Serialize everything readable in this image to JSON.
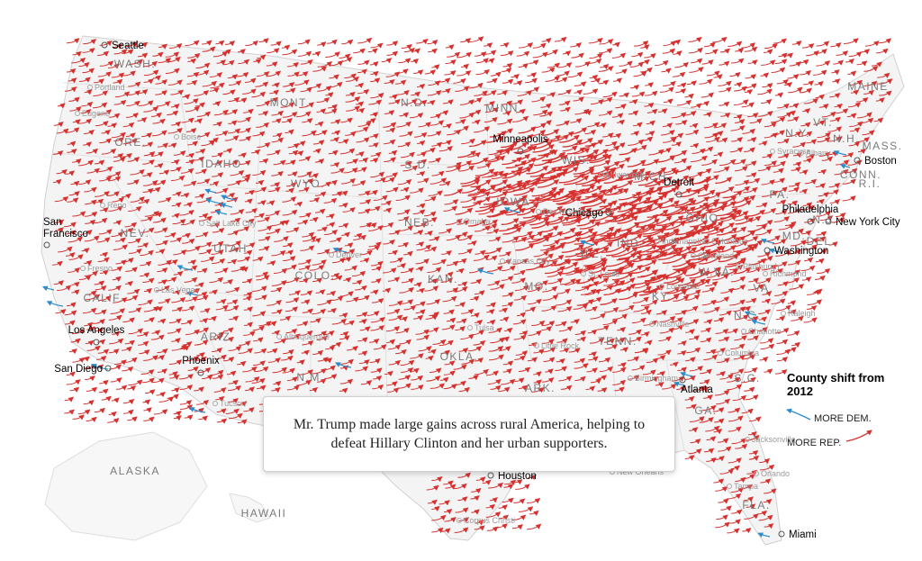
{
  "callout": {
    "text": "Mr. Trump made large gains across rural America, helping to defeat Hillary Clinton and her urban supporters."
  },
  "legend": {
    "title": "County shift from 2012",
    "dem_label": "MORE DEM.",
    "rep_label": "MORE REP.",
    "dem_color": "#2b8ccb",
    "rep_color": "#d6312f"
  },
  "state_labels": [
    "WASH.",
    "ORE.",
    "IDAHO",
    "MONT.",
    "WYO.",
    "N.D.",
    "S.D.",
    "NEB.",
    "MINN.",
    "IOWA",
    "WIS.",
    "MICH.",
    "ILL.",
    "IND.",
    "OHIO",
    "PA.",
    "N.Y.",
    "VT.",
    "N.H.",
    "MAINE",
    "MASS.",
    "CONN.",
    "R.I.",
    "N.J.",
    "DEL.",
    "MD.",
    "W.VA.",
    "VA.",
    "KY.",
    "TENN.",
    "N.C.",
    "S.C.",
    "GA.",
    "FLA.",
    "ALA.",
    "MISS.",
    "ARK.",
    "LA.",
    "MO.",
    "KAN.",
    "OKLA.",
    "TEXAS",
    "N.M.",
    "ARIZ.",
    "COLO.",
    "UTAH",
    "NEV.",
    "CALIF.",
    "ALASKA",
    "HAWAII"
  ],
  "major_cities": [
    "Seattle",
    "San Francisco",
    "Los Angeles",
    "San Diego",
    "Phoenix",
    "Minneapolis",
    "Chicago",
    "Detroit",
    "Philadelphia",
    "New York City",
    "Boston",
    "Washington",
    "Atlanta",
    "Houston",
    "Miami"
  ],
  "minor_cities": [
    "Portland",
    "Eugene",
    "Boise",
    "Reno",
    "Salt Lake City",
    "Fresno",
    "Las Vegas",
    "Denver",
    "Albuquerque",
    "Tucson",
    "Omaha",
    "Kansas City",
    "Tulsa",
    "Little Rock",
    "Milwaukee",
    "Des Moines",
    "St. Louis",
    "Indianapolis",
    "Columbus",
    "Cleveland",
    "Pittsburgh",
    "Louisville",
    "Nashville",
    "Birmingham",
    "Charlotte",
    "Raleigh",
    "Richmond",
    "Columbia",
    "Jacksonville",
    "Orlando",
    "Tampa",
    "Syracuse",
    "Albany",
    "Corpus Christi",
    "New Orleans"
  ]
}
